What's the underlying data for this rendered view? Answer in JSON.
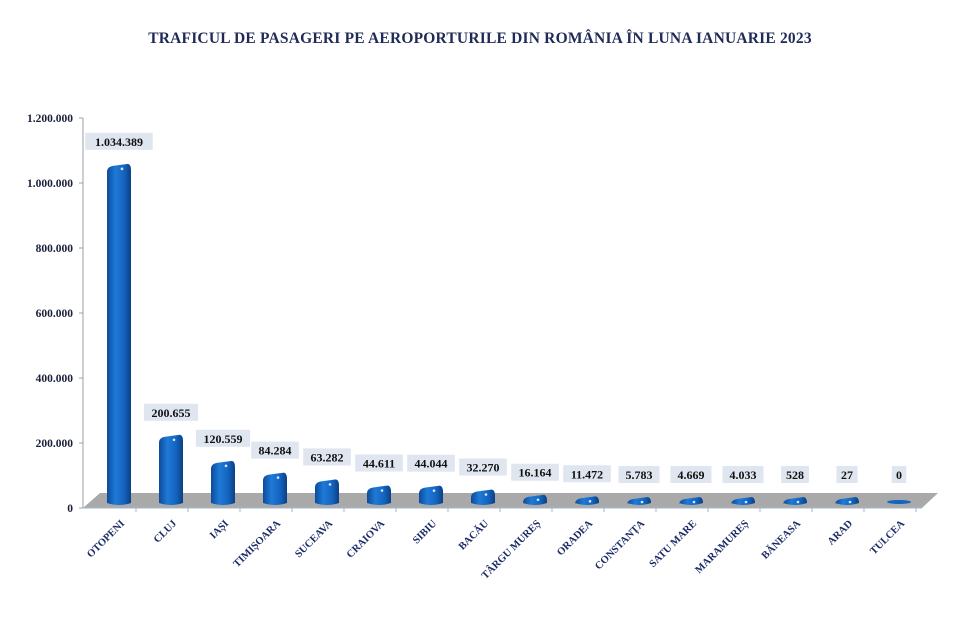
{
  "chart_data": {
    "type": "bar",
    "title": "TRAFICUL DE PASAGERI PE AEROPORTURILE DIN ROMÂNIA ÎN LUNA IANUARIE 2023",
    "xlabel": "",
    "ylabel": "",
    "ylim": [
      0,
      1200000
    ],
    "yticks": [
      0,
      200000,
      400000,
      600000,
      800000,
      1000000,
      1200000
    ],
    "ytick_labels": [
      "0",
      "200.000",
      "400.000",
      "600.000",
      "800.000",
      "1.000.000",
      "1.200.000"
    ],
    "categories": [
      "OTOPENI",
      "CLUJ",
      "IAȘI",
      "TIMIȘOARA",
      "SUCEAVA",
      "CRAIOVA",
      "SIBIU",
      "BACĂU",
      "TÂRGU MUREȘ",
      "ORADEA",
      "CONSTANȚA",
      "SATU MARE",
      "MARAMUREȘ",
      "BĂNEASA",
      "ARAD",
      "TULCEA"
    ],
    "values": [
      1034389,
      200655,
      120559,
      84284,
      63282,
      44611,
      44044,
      32270,
      16164,
      11472,
      5783,
      4669,
      4033,
      528,
      27,
      0
    ],
    "data_labels": [
      "1.034.389",
      "200.655",
      "120.559",
      "84.284",
      "63.282",
      "44.611",
      "44.044",
      "32.270",
      "16.164",
      "11.472",
      "5.783",
      "4.669",
      "4.033",
      "528",
      "27",
      "0"
    ],
    "grid": false,
    "legend": "none",
    "colors": {
      "bar": "#1565c0",
      "floor": "#a9a9a9",
      "label_bg": "#dfe6f0",
      "title": "#1f2a56"
    }
  }
}
